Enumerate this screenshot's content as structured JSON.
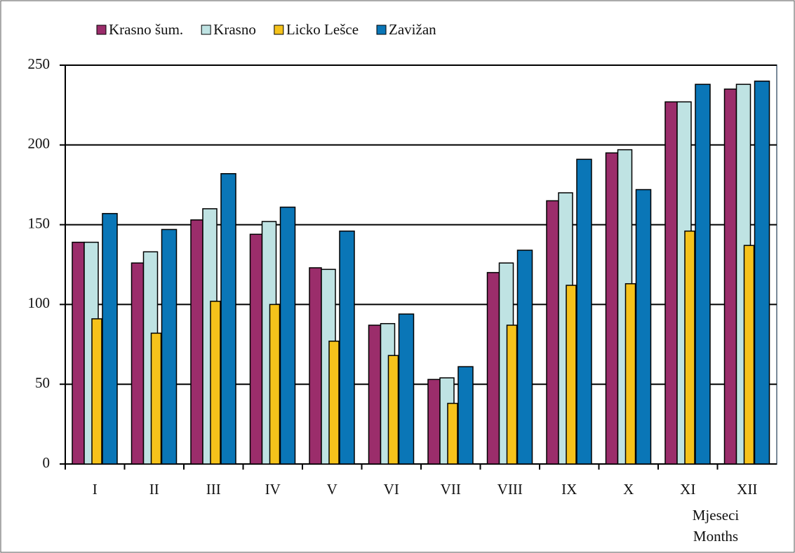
{
  "chart_data": {
    "type": "bar",
    "categories": [
      "I",
      "II",
      "III",
      "IV",
      "V",
      "VI",
      "VII",
      "VIII",
      "IX",
      "X",
      "XI",
      "XII"
    ],
    "series": [
      {
        "name": "Krasno šum.",
        "color": "#9b2d6b",
        "values": [
          139,
          126,
          153,
          144,
          123,
          87,
          53,
          120,
          165,
          195,
          227,
          235
        ]
      },
      {
        "name": "Krasno",
        "color": "#bfe3e3",
        "values": [
          139,
          133,
          160,
          152,
          122,
          88,
          54,
          126,
          170,
          197,
          227,
          238
        ]
      },
      {
        "name": "Licko Lešce",
        "color": "#f5c21b",
        "values": [
          91,
          82,
          102,
          100,
          77,
          68,
          38,
          87,
          112,
          113,
          146,
          137
        ]
      },
      {
        "name": "Zavižan",
        "color": "#0a76b7",
        "values": [
          157,
          147,
          182,
          161,
          146,
          94,
          61,
          134,
          191,
          172,
          238,
          240
        ]
      }
    ],
    "x_label": [
      "Mjeseci",
      "Months"
    ],
    "ylim": [
      0,
      250
    ],
    "yticks": [
      0,
      50,
      100,
      150,
      200,
      250
    ],
    "grid": true,
    "legend": "top"
  }
}
